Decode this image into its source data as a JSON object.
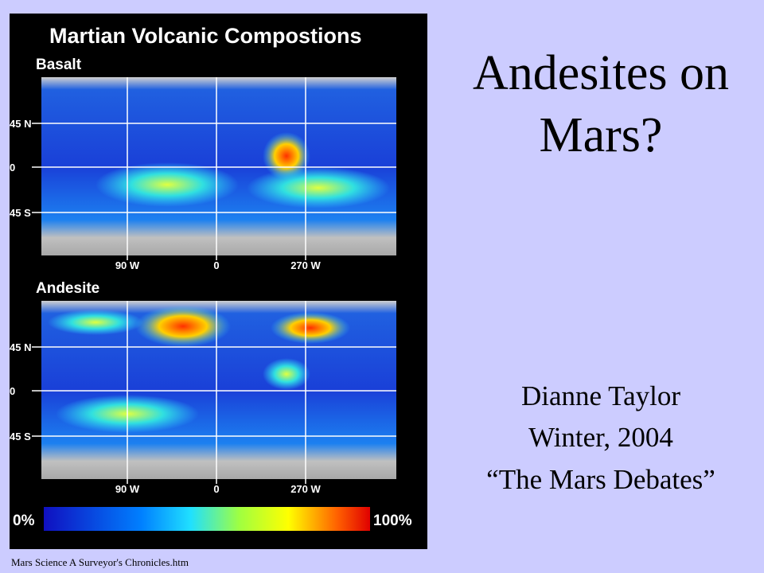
{
  "title": {
    "lines": [
      "Andesites on",
      "Mars?"
    ]
  },
  "byline": [
    "Dianne Taylor",
    "Winter, 2004",
    "“The Mars Debates”"
  ],
  "figure": {
    "title": "Martian Volcanic Compostions",
    "panels": [
      {
        "label": "Basalt",
        "lat_labels": [
          "45 N",
          "0",
          "45 S"
        ],
        "lon_labels": [
          "90 W",
          "0",
          "270 W"
        ]
      },
      {
        "label": "Andesite",
        "lat_labels": [
          "45 N",
          "0",
          "45 S"
        ],
        "lon_labels": [
          "90 W",
          "0",
          "270 W"
        ]
      }
    ],
    "scale": [
      "0%",
      "100%"
    ]
  },
  "footer": "Mars Science A Surveyor's Chronicles.htm"
}
